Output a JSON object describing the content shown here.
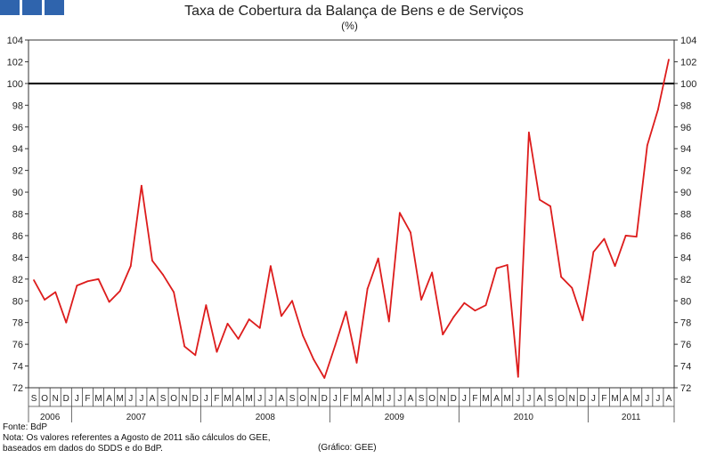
{
  "logo": {
    "color": "#2f64ad",
    "blocks": 3
  },
  "chart_data": {
    "type": "line",
    "title": "Taxa de Cobertura da Balança de Bens e de Serviços",
    "subtitle": "(%)",
    "ylim": [
      72,
      104
    ],
    "yticks": [
      72,
      74,
      76,
      78,
      80,
      82,
      84,
      86,
      88,
      90,
      92,
      94,
      96,
      98,
      100,
      102,
      104
    ],
    "month_labels": [
      "S",
      "O",
      "N",
      "D",
      "J",
      "F",
      "M",
      "A",
      "M",
      "J",
      "J",
      "A",
      "S",
      "O",
      "N",
      "D",
      "J",
      "F",
      "M",
      "A",
      "M",
      "J",
      "J",
      "A",
      "S",
      "O",
      "N",
      "D",
      "J",
      "F",
      "M",
      "A",
      "M",
      "J",
      "J",
      "A",
      "S",
      "O",
      "N",
      "D",
      "J",
      "F",
      "M",
      "A",
      "M",
      "J",
      "J",
      "A",
      "S",
      "O",
      "N",
      "D",
      "J",
      "F",
      "M",
      "A",
      "M",
      "J",
      "J",
      "A"
    ],
    "year_groups": [
      {
        "label": "2006",
        "months": 4
      },
      {
        "label": "2007",
        "months": 12
      },
      {
        "label": "2008",
        "months": 12
      },
      {
        "label": "2009",
        "months": 12
      },
      {
        "label": "2010",
        "months": 12
      },
      {
        "label": "2011",
        "months": 8
      }
    ],
    "reference_line": 100,
    "series": [
      {
        "color": "#dd1c1c",
        "values": [
          81.9,
          80.1,
          80.8,
          78.0,
          81.4,
          81.8,
          82.0,
          79.9,
          80.9,
          83.2,
          90.6,
          83.7,
          82.4,
          80.8,
          75.8,
          75.0,
          79.6,
          75.3,
          77.9,
          76.5,
          78.3,
          77.5,
          83.2,
          78.6,
          80.0,
          76.8,
          74.6,
          72.9,
          75.9,
          79.0,
          74.3,
          81.1,
          83.9,
          78.1,
          88.1,
          86.3,
          80.1,
          82.6,
          76.9,
          78.5,
          79.8,
          79.1,
          79.6,
          83.0,
          83.3,
          73.0,
          95.5,
          89.3,
          88.7,
          82.2,
          81.2,
          78.2,
          84.5,
          85.7,
          83.2,
          86.0,
          85.9,
          94.3,
          97.6,
          102.2
        ]
      }
    ],
    "grid": false
  },
  "footer": {
    "source": "Fonte: BdP",
    "note1": "Nota: Os valores referentes a Agosto de 2011 são cálculos do GEE,",
    "note2": "baseados em dados do SDDS e do  BdP.",
    "credit": "(Gráfico: GEE)"
  }
}
